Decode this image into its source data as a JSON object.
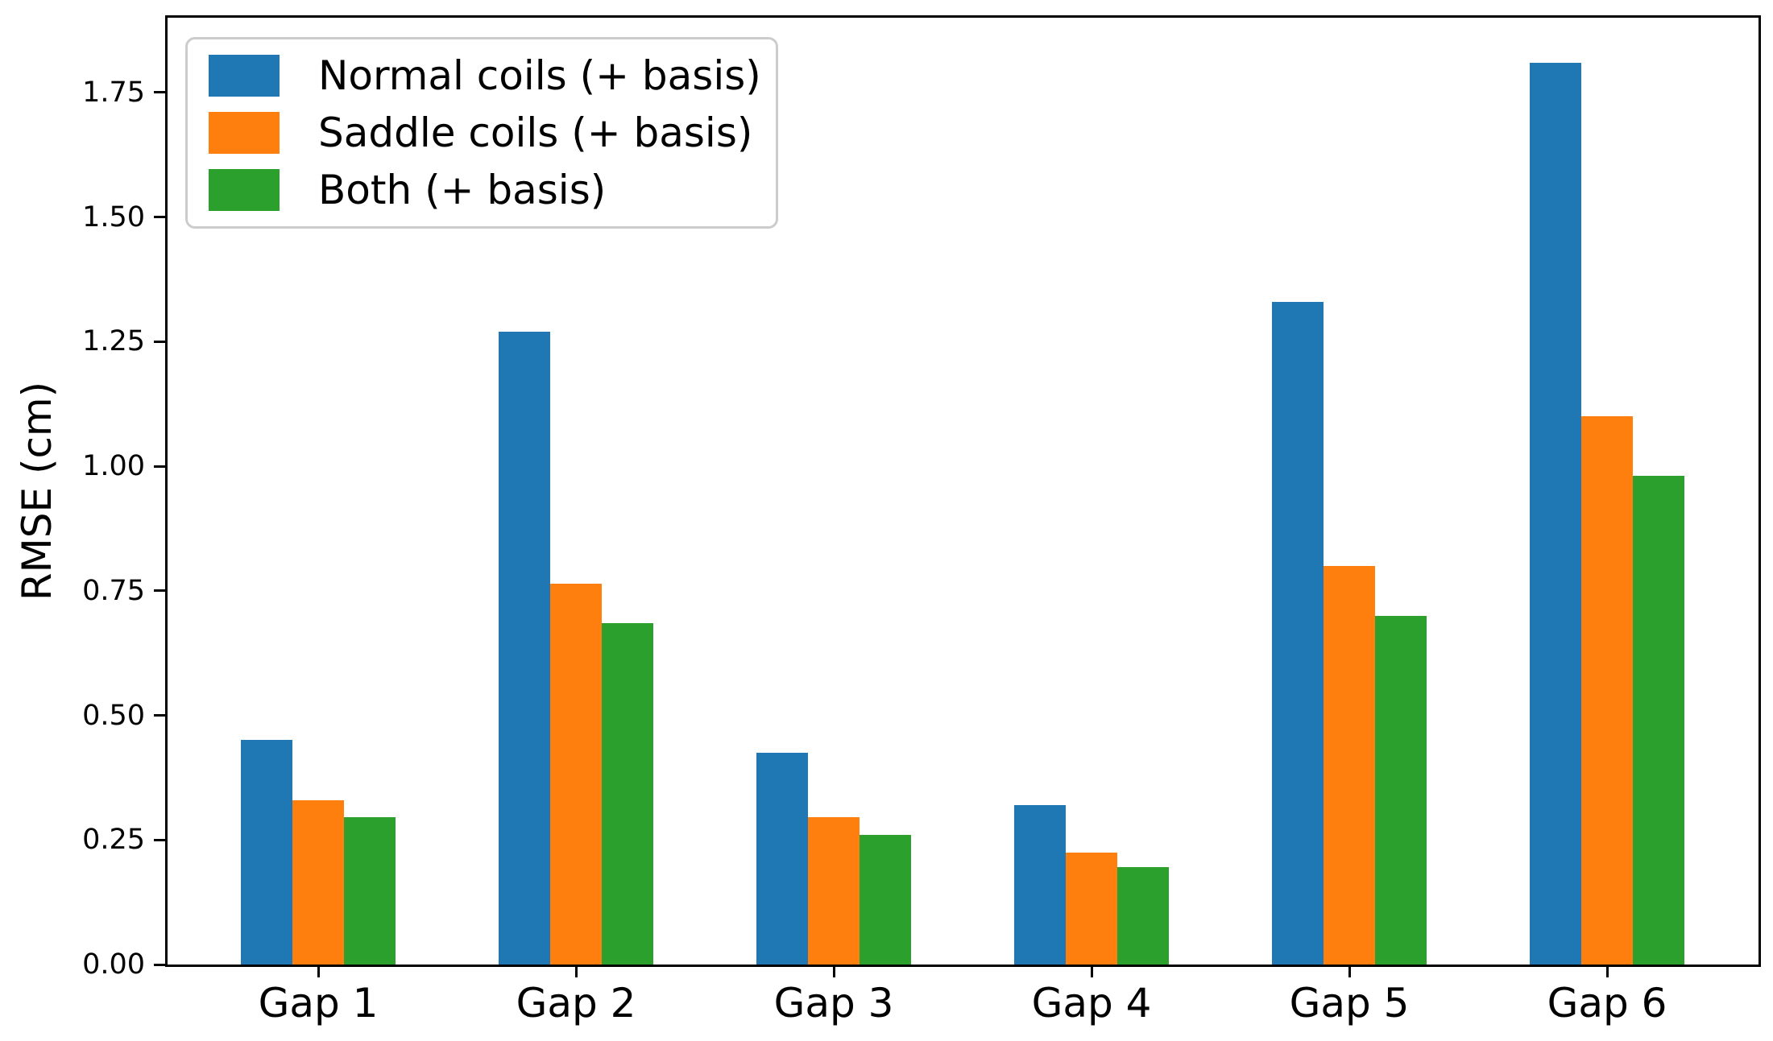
{
  "chart_data": {
    "type": "bar",
    "title": "",
    "xlabel": "",
    "ylabel": "RMSE (cm)",
    "categories": [
      "Gap 1",
      "Gap 2",
      "Gap 3",
      "Gap 4",
      "Gap 5",
      "Gap 6"
    ],
    "series": [
      {
        "name": "Normal coils (+ basis)",
        "color": "#1f77b4",
        "values": [
          0.45,
          1.27,
          0.425,
          0.32,
          1.33,
          1.81
        ]
      },
      {
        "name": "Saddle coils (+ basis)",
        "color": "#ff7f0e",
        "values": [
          0.33,
          0.765,
          0.295,
          0.225,
          0.8,
          1.1
        ]
      },
      {
        "name": "Both (+ basis)",
        "color": "#2ca02c",
        "values": [
          0.295,
          0.685,
          0.26,
          0.195,
          0.7,
          0.98
        ]
      }
    ],
    "ylim": [
      0,
      1.9
    ],
    "ytick_labels": [
      "0.00",
      "0.25",
      "0.50",
      "0.75",
      "1.00",
      "1.25",
      "1.50",
      "1.75"
    ],
    "grid": false,
    "legend_position": "upper left"
  }
}
